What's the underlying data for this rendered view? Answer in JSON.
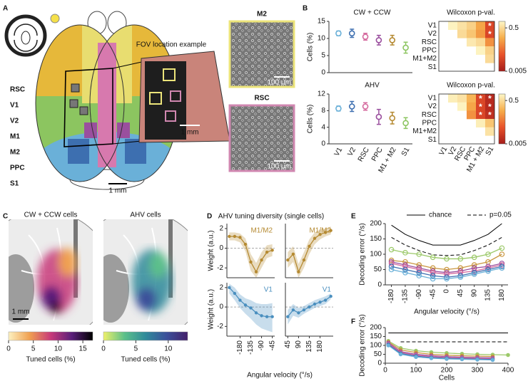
{
  "panel_letters": [
    "A",
    "B",
    "C",
    "D",
    "E",
    "F"
  ],
  "panel_a": {
    "areas": [
      {
        "label": "RSC",
        "color": "#d779ae"
      },
      {
        "label": "V1",
        "color": "#6ab0d8"
      },
      {
        "label": "V2",
        "color": "#3d6fb0"
      },
      {
        "label": "M1",
        "color": "#e6b83a"
      },
      {
        "label": "M2",
        "color": "#e8dd70"
      },
      {
        "label": "PPC",
        "color": "#9a4f9e"
      },
      {
        "label": "S1",
        "color": "#8cc560"
      }
    ],
    "fov_label": "FOV location example",
    "fov_scale": "1 mm",
    "brain_scale": "1 mm",
    "images": [
      {
        "label": "M2",
        "scale": "100 μm",
        "color": "#ece47a"
      },
      {
        "label": "RSC",
        "scale": "100 μm",
        "color": "#d087b0"
      }
    ]
  },
  "panel_c": {
    "maps": [
      {
        "title": "CW + CCW cells",
        "colorbar_label": "Tuned cells (%)",
        "clim": [
          0,
          17
        ],
        "ticks": [
          0,
          5,
          10,
          15
        ],
        "colors": [
          "#fdf1c0",
          "#f0a050",
          "#c83a7a",
          "#5a1f7a",
          "#000000"
        ]
      },
      {
        "title": "AHV cells",
        "colorbar_label": "Tuned cells (%)",
        "clim": [
          0,
          13
        ],
        "ticks": [
          0,
          5,
          10
        ],
        "colors": [
          "#eef06a",
          "#5cc08a",
          "#2f8a9a",
          "#3b4f9a",
          "#43206a"
        ]
      }
    ],
    "scale": "1 mm"
  },
  "panel_d": {
    "title": "AHV tuning diversity (single cells)",
    "x_label": "Angular velocity (°/s)"
  },
  "chart_data": [
    {
      "type": "errorbar",
      "title": "CW + CCW",
      "y_label": "Cells (%)",
      "values": [
        11.5,
        11.5,
        10.5,
        9.5,
        9.5,
        7.3
      ],
      "errors": [
        0.7,
        1.2,
        1.0,
        1.4,
        1.4,
        1.6
      ],
      "colors": [
        "#6ab0d8",
        "#3d6fb0",
        "#d56b9f",
        "#9a4f9e",
        "#b58a32",
        "#8cc560"
      ],
      "ylim": [
        0,
        15
      ],
      "yticks": [
        0,
        5,
        10,
        15
      ]
    },
    {
      "type": "errorbar",
      "title": "AHV",
      "y_label": "Cells (%)",
      "categories": [
        "V1",
        "V2",
        "RSC",
        "PPC",
        "M1 + M2",
        "S1"
      ],
      "values": [
        8.5,
        9,
        9,
        6.5,
        6.2,
        5
      ],
      "errors": [
        0.6,
        1.2,
        0.9,
        1.8,
        1.4,
        1.3
      ],
      "colors": [
        "#6ab0d8",
        "#3d6fb0",
        "#d56b9f",
        "#9a4f9e",
        "#b58a32",
        "#8cc560"
      ],
      "ylim": [
        0,
        12
      ],
      "yticks": [
        0,
        4,
        8,
        12
      ]
    },
    {
      "type": "heatmap",
      "title": "Wilcoxon p-val.",
      "rows": [
        "V1",
        "V2",
        "RSC",
        "PPC",
        "M1+M2",
        "S1"
      ],
      "values": [
        [
          null,
          0.9,
          0.6,
          0.4,
          0.15,
          0.02
        ],
        [
          null,
          null,
          0.5,
          0.3,
          0.12,
          0.02
        ],
        [
          null,
          null,
          null,
          0.7,
          0.5,
          0.1
        ],
        [
          null,
          null,
          null,
          null,
          0.9,
          0.4
        ],
        [
          null,
          null,
          null,
          null,
          null,
          0.5
        ],
        [
          null,
          null,
          null,
          null,
          null,
          null
        ]
      ],
      "significance": [
        [
          null,
          null,
          null,
          null,
          null,
          "*"
        ],
        [
          null,
          null,
          null,
          null,
          null,
          "*"
        ],
        [
          null,
          null,
          null,
          null,
          null,
          null
        ],
        [
          null,
          null,
          null,
          null,
          null,
          null
        ],
        [
          null,
          null,
          null,
          null,
          null,
          null
        ],
        [
          null,
          null,
          null,
          null,
          null,
          null
        ]
      ],
      "colormap": [
        "#a51c1a",
        "#e8522a",
        "#f6ad4a",
        "#fdf7c8"
      ],
      "clim": [
        0.005,
        1
      ],
      "log_scale": true,
      "cticks": [
        0.5,
        0.005
      ]
    },
    {
      "type": "heatmap",
      "title": "Wilcoxon p-val.",
      "rows": [
        "V1",
        "V2",
        "RSC",
        "PPC",
        "M1+M2",
        "S1"
      ],
      "columns": [
        "V1",
        "V2",
        "RSC",
        "PPC",
        "M1 + M2",
        "S1"
      ],
      "values": [
        [
          null,
          0.8,
          0.6,
          0.2,
          0.02,
          0.008
        ],
        [
          null,
          null,
          0.9,
          0.15,
          0.02,
          0.008
        ],
        [
          null,
          null,
          null,
          0.1,
          0.02,
          0.01
        ],
        [
          null,
          null,
          null,
          null,
          0.8,
          0.3
        ],
        [
          null,
          null,
          null,
          null,
          null,
          0.6
        ],
        [
          null,
          null,
          null,
          null,
          null,
          null
        ]
      ],
      "significance": [
        [
          null,
          null,
          null,
          null,
          "*",
          "*"
        ],
        [
          null,
          null,
          null,
          null,
          "*",
          "*"
        ],
        [
          null,
          null,
          null,
          null,
          "*",
          "*"
        ],
        [
          null,
          null,
          null,
          null,
          null,
          null
        ],
        [
          null,
          null,
          null,
          null,
          null,
          null
        ],
        [
          null,
          null,
          null,
          null,
          null,
          null
        ]
      ],
      "colormap": [
        "#a51c1a",
        "#e8522a",
        "#f6ad4a",
        "#fdf7c8"
      ],
      "clim": [
        0.005,
        1
      ],
      "log_scale": true,
      "cticks": [
        0.5,
        0.005
      ]
    },
    {
      "type": "line",
      "label": "M1/M2",
      "color": "#b58a32",
      "y_label": "Weight (a.u.)",
      "zero_line": true,
      "x": [
        -225,
        -202.5,
        -180,
        -157.5,
        -135,
        -112.5,
        -90,
        -67.5,
        -45
      ],
      "xlim": [
        -235,
        -35
      ],
      "ylim": [
        -3,
        2.5
      ],
      "yticks": [
        2,
        0,
        -2
      ],
      "values": [
        1.2,
        1.2,
        1.1,
        0.4,
        -1.4,
        -2.4,
        -1.2,
        -0.4,
        -0.2
      ],
      "lower": [
        0.8,
        0.8,
        0.6,
        -0.3,
        -2.3,
        -3.0,
        -2.0,
        -1.0,
        -0.8
      ],
      "upper": [
        1.6,
        1.6,
        1.5,
        1.0,
        -0.6,
        -1.5,
        -0.4,
        0.3,
        0.4
      ]
    },
    {
      "type": "line",
      "label": "M1/M2",
      "color": "#b58a32",
      "zero_line": true,
      "x": [
        45,
        67.5,
        90,
        112.5,
        135,
        157.5,
        180,
        202.5,
        225
      ],
      "xlim": [
        35,
        235
      ],
      "ylim": [
        -3,
        2.5
      ],
      "values": [
        -1.2,
        -0.6,
        -2.4,
        -1.2,
        0.2,
        1.0,
        1.4,
        1.6,
        1.8
      ],
      "lower": [
        -2.0,
        -1.4,
        -3.0,
        -2.0,
        -0.6,
        0.4,
        0.9,
        1.2,
        1.4
      ],
      "upper": [
        -0.4,
        0.2,
        -1.6,
        -0.4,
        0.9,
        1.6,
        1.9,
        2.0,
        2.2
      ]
    },
    {
      "type": "line",
      "label": "V1",
      "color": "#4a8fbf",
      "y_label": "Weight (a.u.)",
      "zero_line": true,
      "x": [
        -225,
        -202.5,
        -180,
        -157.5,
        -135,
        -112.5,
        -90,
        -67.5,
        -45
      ],
      "xlim": [
        -235,
        -35
      ],
      "xticks": [
        -180,
        -135,
        -90,
        -45
      ],
      "ylim": [
        -3,
        2.5
      ],
      "yticks": [
        2,
        0,
        -2
      ],
      "values": [
        2.0,
        1.4,
        0.7,
        0.2,
        -0.1,
        -0.6,
        -0.9,
        -1.0,
        -1.0
      ],
      "lower": [
        1.4,
        0.7,
        -0.1,
        -0.7,
        -1.2,
        -1.8,
        -2.2,
        -2.4,
        -2.6
      ],
      "upper": [
        2.4,
        2.0,
        1.3,
        0.9,
        0.7,
        0.4,
        0.3,
        0.3,
        0.4
      ]
    },
    {
      "type": "line",
      "label": "V1",
      "color": "#4a8fbf",
      "zero_line": true,
      "x": [
        45,
        67.5,
        90,
        112.5,
        135,
        157.5,
        180,
        202.5,
        225
      ],
      "xlim": [
        35,
        235
      ],
      "xticks": [
        45,
        90,
        135,
        180
      ],
      "ylim": [
        -3,
        2.5
      ],
      "values": [
        -1.0,
        -0.3,
        -0.6,
        -0.3,
        0.0,
        0.3,
        0.5,
        0.7,
        1.1
      ],
      "lower": [
        -1.8,
        -0.9,
        -1.1,
        -0.7,
        -0.4,
        -0.1,
        0.1,
        0.3,
        0.8
      ],
      "upper": [
        -0.3,
        0.3,
        -0.1,
        0.1,
        0.4,
        0.7,
        0.9,
        1.1,
        1.4
      ]
    },
    {
      "type": "line",
      "x": [
        -180,
        -135,
        -90,
        -45,
        0,
        45,
        90,
        135,
        180
      ],
      "xlim": [
        -200,
        200
      ],
      "xticks": [
        -180,
        -135,
        -90,
        -45,
        0,
        45,
        90,
        135,
        180
      ],
      "ylim": [
        0,
        200
      ],
      "yticks": [
        0,
        50,
        100,
        150,
        200
      ],
      "x_label": "Angular velocity (°/s)",
      "y_label": "Decoding error (°/s)",
      "legend": "top",
      "series": [
        {
          "name": "chance",
          "color": "#000000",
          "dash": false,
          "values": [
            195,
            165,
            145,
            130,
            130,
            130,
            145,
            165,
            200
          ]
        },
        {
          "name": "p=0.05",
          "color": "#000000",
          "dash": true,
          "values": [
            155,
            130,
            112,
            98,
            96,
            98,
            112,
            130,
            155
          ]
        },
        {
          "color": "#9cc96a",
          "marker": "open",
          "values": [
            115,
            105,
            100,
            90,
            85,
            85,
            90,
            100,
            120
          ]
        },
        {
          "color": "#c9963f",
          "marker": "open",
          "values": [
            80,
            75,
            65,
            55,
            50,
            55,
            65,
            75,
            100
          ]
        },
        {
          "color": "#9a4f9e",
          "marker": "open",
          "values": [
            75,
            65,
            55,
            45,
            40,
            45,
            55,
            60,
            70
          ]
        },
        {
          "color": "#d56b9f",
          "marker": "open",
          "values": [
            70,
            60,
            50,
            40,
            35,
            40,
            45,
            55,
            65
          ]
        },
        {
          "color": "#3d6fb0",
          "marker": "open",
          "values": [
            60,
            50,
            40,
            30,
            25,
            30,
            40,
            50,
            60
          ]
        },
        {
          "color": "#6ab0d8",
          "marker": "open",
          "values": [
            50,
            40,
            30,
            20,
            20,
            25,
            35,
            45,
            55
          ]
        }
      ]
    },
    {
      "type": "line",
      "x": [
        10,
        50,
        100,
        150,
        200,
        250,
        300,
        350,
        400
      ],
      "xlim": [
        0,
        400
      ],
      "xticks": [
        0,
        100,
        200,
        300,
        400
      ],
      "ylim": [
        0,
        200
      ],
      "yticks": [
        0,
        50,
        100,
        150,
        200
      ],
      "x_label": "Cells",
      "y_label": "Decoding error (°/s)",
      "series": [
        {
          "color": "#000000",
          "dash": false,
          "values": [
            170,
            170,
            170,
            170,
            170,
            170,
            170,
            170,
            170
          ]
        },
        {
          "color": "#000000",
          "dash": true,
          "values": [
            null,
            120,
            120,
            120,
            120,
            120,
            120,
            120,
            120
          ]
        },
        {
          "color": "#9cc96a",
          "marker": "filled",
          "values": [
            125,
            85,
            70,
            62,
            57,
            53,
            50,
            48,
            46
          ]
        },
        {
          "color": "#c9963f",
          "marker": "filled",
          "values": [
            120,
            75,
            60,
            50,
            45,
            42,
            40,
            38,
            null
          ]
        },
        {
          "color": "#9a4f9e",
          "marker": "filled",
          "values": [
            115,
            65,
            50,
            42,
            37,
            34,
            32,
            30,
            null
          ]
        },
        {
          "color": "#d56b9f",
          "marker": "filled",
          "values": [
            110,
            60,
            45,
            37,
            32,
            29,
            27,
            25,
            null
          ]
        },
        {
          "color": "#3d6fb0",
          "marker": "filled",
          "values": [
            105,
            55,
            40,
            32,
            28,
            25,
            23,
            21,
            null
          ]
        },
        {
          "color": "#6ab0d8",
          "marker": "filled",
          "values": [
            100,
            50,
            35,
            28,
            24,
            22,
            20,
            18,
            null
          ]
        }
      ]
    }
  ]
}
